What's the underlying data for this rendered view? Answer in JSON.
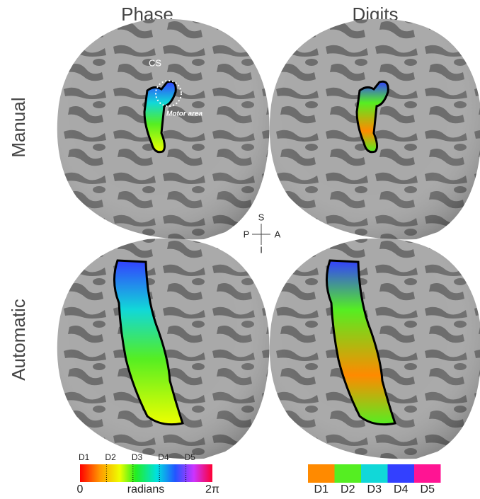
{
  "columns": [
    "Phase",
    "Digits"
  ],
  "rows": [
    "Manual",
    "Automatic"
  ],
  "annotations": {
    "sulcus": "CS",
    "region": "Motor area"
  },
  "orientation": {
    "superior": "S",
    "posterior": "P",
    "anterior": "A",
    "inferior": "I"
  },
  "phase_colorbar": {
    "ticks": [
      "D1",
      "D2",
      "D3",
      "D4",
      "D5"
    ],
    "min": "0",
    "unit": "radians",
    "max": "2π"
  },
  "digit_legend": [
    {
      "label": "D1",
      "color": "#ff8a00"
    },
    {
      "label": "D2",
      "color": "#55ee22"
    },
    {
      "label": "D3",
      "color": "#11d8d8"
    },
    {
      "label": "D4",
      "color": "#3340ff"
    },
    {
      "label": "D5",
      "color": "#ff1493"
    }
  ]
}
